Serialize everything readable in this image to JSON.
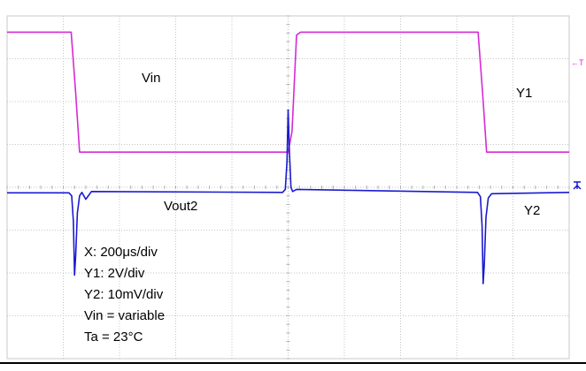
{
  "chart_data": {
    "type": "line",
    "title": "",
    "xlabel": "",
    "ylabel": "",
    "grid": true,
    "divisions": {
      "x": 10,
      "y": 8
    },
    "xlim": [
      0,
      10
    ],
    "ylim": [
      0,
      8
    ],
    "series": [
      {
        "name": "Vin",
        "channel": "Y1",
        "color": "#d62ad6",
        "points": [
          [
            0.0,
            7.62
          ],
          [
            1.14,
            7.62
          ],
          [
            1.22,
            6.2
          ],
          [
            1.29,
            4.82
          ],
          [
            5.0,
            4.82
          ],
          [
            5.07,
            5.3
          ],
          [
            5.15,
            7.55
          ],
          [
            5.22,
            7.62
          ],
          [
            8.38,
            7.62
          ],
          [
            8.46,
            6.2
          ],
          [
            8.53,
            4.82
          ],
          [
            10.0,
            4.82
          ]
        ]
      },
      {
        "name": "Vout2",
        "channel": "Y2",
        "color": "#1a1ad0",
        "points": [
          [
            0.0,
            3.87
          ],
          [
            1.1,
            3.87
          ],
          [
            1.15,
            3.8
          ],
          [
            1.18,
            3.2
          ],
          [
            1.2,
            1.95
          ],
          [
            1.22,
            2.4
          ],
          [
            1.25,
            3.4
          ],
          [
            1.29,
            3.8
          ],
          [
            1.33,
            3.88
          ],
          [
            1.4,
            3.72
          ],
          [
            1.5,
            3.9
          ],
          [
            4.9,
            3.88
          ],
          [
            4.95,
            3.95
          ],
          [
            4.98,
            4.6
          ],
          [
            5.0,
            5.8
          ],
          [
            5.02,
            4.9
          ],
          [
            5.05,
            4.0
          ],
          [
            5.08,
            3.9
          ],
          [
            5.15,
            3.95
          ],
          [
            8.37,
            3.88
          ],
          [
            8.42,
            3.78
          ],
          [
            8.45,
            3.1
          ],
          [
            8.47,
            1.75
          ],
          [
            8.49,
            2.2
          ],
          [
            8.52,
            3.3
          ],
          [
            8.56,
            3.75
          ],
          [
            8.62,
            3.85
          ],
          [
            10.0,
            3.88
          ]
        ]
      }
    ],
    "labels": {
      "vin": "Vin",
      "vout": "Vout2",
      "y1": "Y1",
      "y2": "Y2",
      "trigger": "←T"
    },
    "settings": [
      "X: 200μs/div",
      "Y1: 2V/div",
      "Y2: 10mV/div",
      "Vin = variable",
      "Ta = 23°C"
    ]
  }
}
